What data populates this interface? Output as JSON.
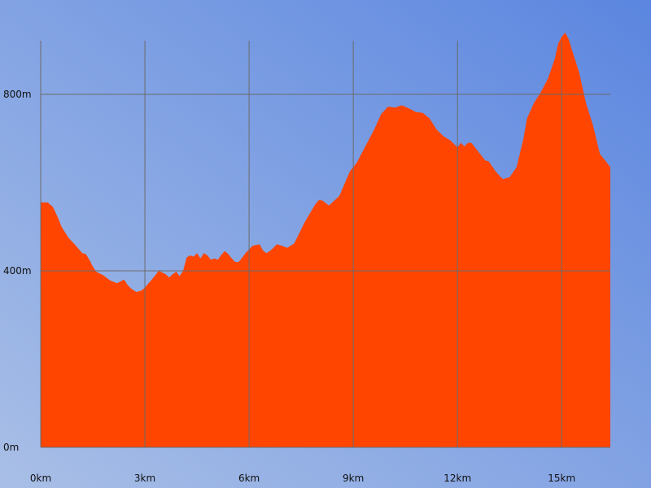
{
  "chart_data": {
    "type": "area",
    "title": "",
    "xlabel": "",
    "ylabel": "",
    "x_unit": "km",
    "y_unit": "m",
    "xlim": [
      0,
      16.4
    ],
    "ylim": [
      0,
      940
    ],
    "x_ticks": [
      0,
      3,
      6,
      9,
      12,
      15
    ],
    "y_ticks": [
      0,
      400,
      800
    ],
    "x_tick_labels": [
      "0km",
      "3km",
      "6km",
      "9km",
      "12km",
      "15km"
    ],
    "y_tick_labels": [
      "0m",
      "400m",
      "800m"
    ],
    "grid": true,
    "colors": {
      "fill": "#ff4500",
      "grid": "#6b6b6b",
      "background_start": "#a9bfe6",
      "background_end": "#5b86e0"
    },
    "series": [
      {
        "x": [
          0,
          0.2,
          0.35,
          0.5,
          0.6,
          0.8,
          1.0,
          1.2,
          1.3,
          1.4,
          1.5,
          1.6,
          1.8,
          2.0,
          2.2,
          2.4,
          2.5,
          2.6,
          2.75,
          2.9,
          3.0,
          3.2,
          3.4,
          3.6,
          3.7,
          3.8,
          3.9,
          4.0,
          4.1,
          4.2,
          4.3,
          4.4,
          4.5,
          4.6,
          4.7,
          4.8,
          4.9,
          5.0,
          5.1,
          5.2,
          5.3,
          5.4,
          5.5,
          5.6,
          5.7,
          5.8,
          5.9,
          6.1,
          6.3,
          6.4,
          6.5,
          6.6,
          6.7,
          6.8,
          6.9,
          7.1,
          7.3,
          7.6,
          7.9,
          8.0,
          8.1,
          8.3,
          8.6,
          8.9,
          9.1,
          9.4,
          9.6,
          9.8,
          10.0,
          10.2,
          10.4,
          10.6,
          10.8,
          11.0,
          11.2,
          11.4,
          11.6,
          11.8,
          12.0,
          12.1,
          12.2,
          12.3,
          12.4,
          12.6,
          12.8,
          12.9,
          13.1,
          13.3,
          13.5,
          13.7,
          13.9,
          14.0,
          14.2,
          14.4,
          14.6,
          14.8,
          14.9,
          15.0,
          15.1,
          15.2,
          15.3,
          15.5,
          15.7,
          15.9,
          16.1,
          16.25,
          16.4
        ],
        "y": [
          555,
          555,
          545,
          520,
          500,
          475,
          458,
          440,
          438,
          425,
          410,
          398,
          390,
          378,
          372,
          380,
          368,
          360,
          352,
          355,
          362,
          380,
          400,
          392,
          385,
          392,
          398,
          388,
          400,
          430,
          435,
          432,
          440,
          428,
          440,
          435,
          425,
          428,
          425,
          436,
          445,
          438,
          428,
          420,
          420,
          430,
          440,
          457,
          460,
          446,
          440,
          445,
          452,
          460,
          458,
          452,
          462,
          510,
          550,
          560,
          560,
          548,
          570,
          625,
          645,
          690,
          720,
          755,
          772,
          770,
          775,
          768,
          760,
          758,
          745,
          720,
          705,
          695,
          680,
          690,
          682,
          690,
          690,
          670,
          650,
          648,
          625,
          608,
          612,
          635,
          700,
          745,
          780,
          805,
          835,
          880,
          915,
          930,
          940,
          925,
          900,
          850,
          780,
          730,
          665,
          650,
          635
        ]
      }
    ]
  }
}
